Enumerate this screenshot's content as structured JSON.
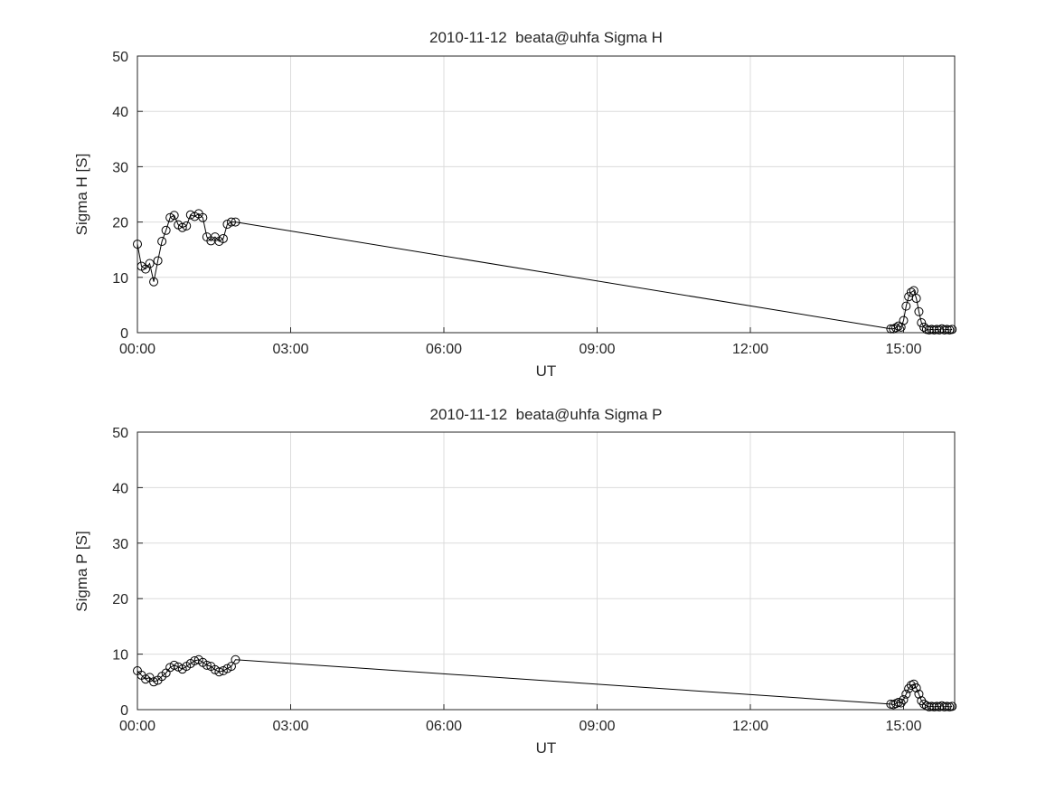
{
  "page": {
    "background": "#ffffff",
    "line_color": "#000000",
    "grid_color": "#dcdcdc",
    "axes_color": "#262626"
  },
  "chart_data": [
    {
      "type": "line",
      "title": "2010-11-12  beata@uhfa Sigma H",
      "xlabel": "UT",
      "ylabel": "Sigma H [S]",
      "marker": "open-circle",
      "line_color": "#000000",
      "grid": true,
      "legend": null,
      "xlim": [
        0,
        16
      ],
      "ylim": [
        0,
        50
      ],
      "xticks": [
        0,
        3,
        6,
        9,
        12,
        15
      ],
      "xtick_labels": [
        "00:00",
        "03:00",
        "06:00",
        "09:00",
        "12:00",
        "15:00"
      ],
      "yticks": [
        0,
        10,
        20,
        30,
        40,
        50
      ],
      "ytick_labels": [
        "0",
        "10",
        "20",
        "30",
        "40",
        "50"
      ],
      "x": [
        0.0,
        0.08,
        0.16,
        0.24,
        0.32,
        0.4,
        0.48,
        0.56,
        0.64,
        0.72,
        0.8,
        0.88,
        0.96,
        1.04,
        1.12,
        1.2,
        1.28,
        1.36,
        1.44,
        1.52,
        1.6,
        1.68,
        1.76,
        1.84,
        1.92,
        14.75,
        14.8,
        14.85,
        14.9,
        14.95,
        15.0,
        15.05,
        15.1,
        15.15,
        15.2,
        15.25,
        15.3,
        15.35,
        15.4,
        15.45,
        15.5,
        15.55,
        15.6,
        15.65,
        15.7,
        15.75,
        15.8,
        15.85,
        15.9,
        15.95
      ],
      "y": [
        16.0,
        12.0,
        11.5,
        12.5,
        9.2,
        13.0,
        16.5,
        18.5,
        20.8,
        21.2,
        19.5,
        19.0,
        19.3,
        21.3,
        21.0,
        21.5,
        20.8,
        17.3,
        16.6,
        17.3,
        16.5,
        17.0,
        19.6,
        20.0,
        20.0,
        0.7,
        0.7,
        0.9,
        1.2,
        1.0,
        2.2,
        4.8,
        6.5,
        7.3,
        7.6,
        6.2,
        3.8,
        1.8,
        1.0,
        0.6,
        0.5,
        0.6,
        0.5,
        0.6,
        0.5,
        0.7,
        0.5,
        0.6,
        0.5,
        0.6
      ]
    },
    {
      "type": "line",
      "title": "2010-11-12  beata@uhfa Sigma P",
      "xlabel": "UT",
      "ylabel": "Sigma P [S]",
      "marker": "open-circle",
      "line_color": "#000000",
      "grid": true,
      "legend": null,
      "xlim": [
        0,
        16
      ],
      "ylim": [
        0,
        50
      ],
      "xticks": [
        0,
        3,
        6,
        9,
        12,
        15
      ],
      "xtick_labels": [
        "00:00",
        "03:00",
        "06:00",
        "09:00",
        "12:00",
        "15:00"
      ],
      "yticks": [
        0,
        10,
        20,
        30,
        40,
        50
      ],
      "ytick_labels": [
        "0",
        "10",
        "20",
        "30",
        "40",
        "50"
      ],
      "x": [
        0.0,
        0.08,
        0.16,
        0.24,
        0.32,
        0.4,
        0.48,
        0.56,
        0.64,
        0.72,
        0.8,
        0.88,
        0.96,
        1.04,
        1.12,
        1.2,
        1.28,
        1.36,
        1.44,
        1.52,
        1.6,
        1.68,
        1.76,
        1.84,
        1.92,
        14.75,
        14.8,
        14.85,
        14.9,
        14.95,
        15.0,
        15.05,
        15.1,
        15.15,
        15.2,
        15.25,
        15.3,
        15.35,
        15.4,
        15.45,
        15.5,
        15.55,
        15.6,
        15.65,
        15.7,
        15.75,
        15.8,
        15.85,
        15.9,
        15.95
      ],
      "y": [
        7.0,
        6.2,
        5.5,
        5.8,
        5.0,
        5.3,
        6.0,
        6.6,
        7.6,
        8.0,
        7.7,
        7.3,
        7.8,
        8.3,
        8.8,
        9.0,
        8.5,
        8.0,
        7.8,
        7.2,
        6.8,
        7.0,
        7.4,
        7.8,
        9.0,
        1.0,
        0.9,
        1.1,
        1.3,
        1.2,
        1.8,
        2.8,
        3.8,
        4.4,
        4.6,
        3.9,
        2.8,
        1.6,
        1.0,
        0.7,
        0.5,
        0.6,
        0.5,
        0.6,
        0.5,
        0.7,
        0.5,
        0.6,
        0.5,
        0.6
      ]
    }
  ]
}
